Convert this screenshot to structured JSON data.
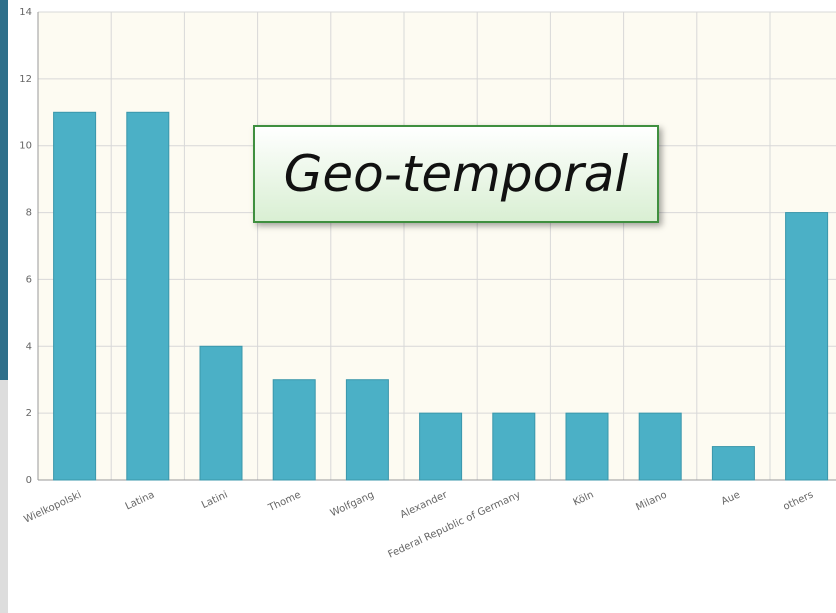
{
  "chart_data": {
    "type": "bar",
    "categories": [
      "Wielkopolski",
      "Latina",
      "Latini",
      "Thome",
      "Wolfgang",
      "Alexander",
      "Federal Republic of Germany",
      "Köln",
      "Milano",
      "Aue",
      "others"
    ],
    "values": [
      11,
      11,
      4,
      3,
      3,
      2,
      2,
      2,
      2,
      1,
      8
    ],
    "color": "#4bb0c6",
    "ylim": [
      0,
      14
    ],
    "yticks": [
      0,
      2,
      4,
      6,
      8,
      10,
      12,
      14
    ],
    "grid": true,
    "annotation": "Geo-temporal"
  }
}
